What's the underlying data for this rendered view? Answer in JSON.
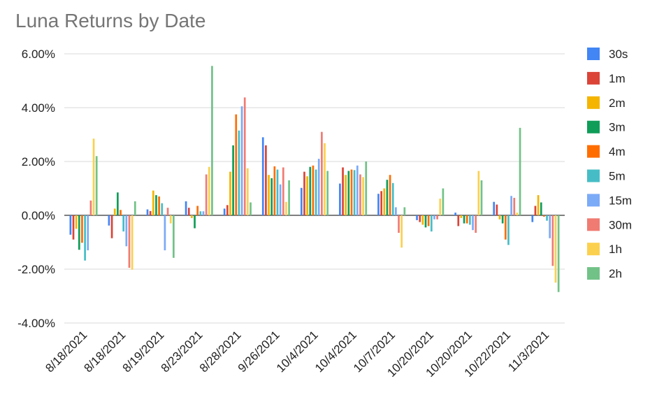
{
  "chart_data": {
    "type": "bar",
    "title": "Luna Returns by Date",
    "xlabel": "",
    "ylabel": "",
    "ylim": [
      -0.04,
      0.06
    ],
    "yticks": [
      "-4.00%",
      "-2.00%",
      "0.00%",
      "2.00%",
      "4.00%",
      "6.00%"
    ],
    "ytick_values": [
      -0.04,
      -0.02,
      0.0,
      0.02,
      0.04,
      0.06
    ],
    "grid": true,
    "legend_position": "right",
    "categories": [
      "8/18/2021",
      "8/18/2021",
      "8/19/2021",
      "8/23/2021",
      "8/28/2021",
      "9/26/2021",
      "10/4/2021",
      "10/4/2021",
      "10/7/2021",
      "10/20/2021",
      "10/20/2021",
      "10/22/2021",
      "11/3/2021"
    ],
    "series": [
      {
        "name": "30s",
        "color": "#4285F4",
        "values": [
          -0.0072,
          -0.0038,
          0.0022,
          0.0052,
          0.0025,
          0.029,
          0.0102,
          0.0118,
          0.008,
          -0.0018,
          0.001,
          0.005,
          -0.0025
        ]
      },
      {
        "name": "1m",
        "color": "#DB4437",
        "values": [
          -0.009,
          -0.0085,
          0.0016,
          0.0028,
          0.0038,
          0.026,
          0.0162,
          0.0178,
          0.009,
          -0.0025,
          -0.004,
          0.004,
          0.0035
        ]
      },
      {
        "name": "2m",
        "color": "#F4B400",
        "values": [
          -0.005,
          0.0025,
          0.0092,
          -0.001,
          0.0162,
          0.015,
          0.0145,
          0.015,
          0.01,
          -0.0035,
          -0.001,
          -0.0015,
          0.0075
        ]
      },
      {
        "name": "3m",
        "color": "#0F9D58",
        "values": [
          -0.0128,
          0.0085,
          0.0075,
          -0.0048,
          0.026,
          0.0138,
          0.018,
          0.0165,
          0.0132,
          -0.0045,
          -0.003,
          -0.003,
          0.0048
        ]
      },
      {
        "name": "4m",
        "color": "#FF6D01",
        "values": [
          -0.0102,
          0.002,
          0.007,
          0.0035,
          0.0375,
          0.0182,
          0.0185,
          0.017,
          0.015,
          -0.004,
          -0.003,
          -0.009,
          -0.0005
        ]
      },
      {
        "name": "5m",
        "color": "#46BDC6",
        "values": [
          -0.0168,
          -0.006,
          0.0045,
          0.0015,
          0.0315,
          0.017,
          0.017,
          0.0168,
          0.012,
          -0.006,
          -0.0035,
          -0.011,
          -0.002
        ]
      },
      {
        "name": "15m",
        "color": "#7BAAF7",
        "values": [
          -0.013,
          -0.0115,
          -0.013,
          0.0015,
          0.0405,
          0.0115,
          0.021,
          0.0185,
          0.003,
          -0.0015,
          -0.0055,
          0.0072,
          -0.0085
        ]
      },
      {
        "name": "30m",
        "color": "#F07B72",
        "values": [
          0.0055,
          -0.0195,
          0.0028,
          0.0152,
          0.0438,
          0.0178,
          0.031,
          0.0152,
          -0.0065,
          -0.0015,
          -0.0065,
          0.0065,
          -0.0188
        ]
      },
      {
        "name": "1h",
        "color": "#FCD04F",
        "values": [
          0.0285,
          -0.0202,
          -0.003,
          0.018,
          0.0175,
          0.005,
          0.0268,
          0.0142,
          -0.012,
          0.0062,
          0.0165,
          0.001,
          -0.025
        ]
      },
      {
        "name": "2h",
        "color": "#71C287",
        "values": [
          0.022,
          0.0052,
          -0.0158,
          0.0555,
          0.0048,
          0.013,
          0.0165,
          0.02,
          0.003,
          0.01,
          0.013,
          0.0325,
          -0.0285
        ]
      }
    ]
  }
}
